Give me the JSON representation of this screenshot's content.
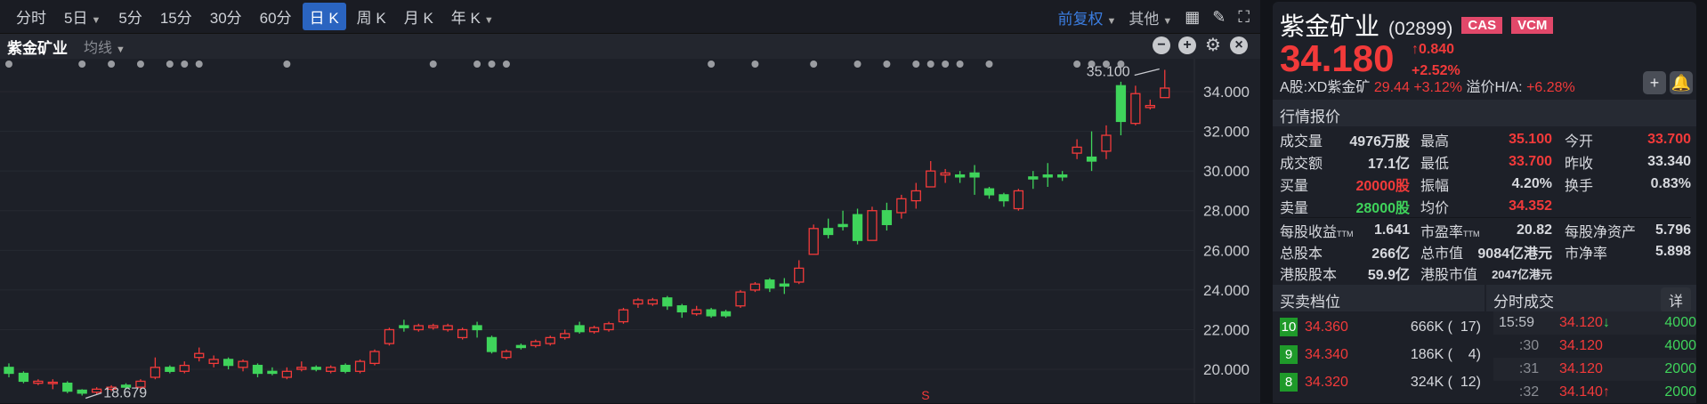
{
  "toolbar": {
    "periods": [
      {
        "label": "分时"
      },
      {
        "label": "5日",
        "chevron": true
      },
      {
        "label": "5分"
      },
      {
        "label": "15分"
      },
      {
        "label": "30分"
      },
      {
        "label": "60分"
      },
      {
        "label": "日 K",
        "active": true
      },
      {
        "label": "周 K"
      },
      {
        "label": "月 K"
      },
      {
        "label": "年 K",
        "chevron": true
      }
    ],
    "adjust": "前复权",
    "other": "其他",
    "icons": [
      "layout-grid-icon",
      "brush-icon",
      "fullscreen-icon"
    ]
  },
  "subbar": {
    "stock_name": "紫金矿业",
    "ma_label": "均线",
    "icons": [
      "zoom-out-icon",
      "zoom-in-icon",
      "gear-icon",
      "close-icon"
    ]
  },
  "chart_data": {
    "type": "candlestick",
    "y_ticks": [
      "34.000",
      "32.000",
      "30.000",
      "28.000",
      "26.000",
      "24.000",
      "22.000",
      "20.000"
    ],
    "ylim": [
      18.1,
      35.7
    ],
    "grid": true,
    "colors": {
      "up": "#f23a3a",
      "down": "#3fd45b",
      "event_dot": "#9a9ca1"
    },
    "high_label": "35.100",
    "low_label": "18.679",
    "marker_label": "S",
    "marker_index": 62,
    "event_dot_indices": [
      0,
      5,
      7,
      9,
      11,
      12,
      13,
      19,
      29,
      32,
      33,
      34,
      48,
      51,
      55,
      58,
      60,
      62,
      63,
      64,
      65,
      67,
      73,
      74,
      75,
      76
    ],
    "ohlc": [
      [
        20.1,
        20.3,
        19.6,
        19.8
      ],
      [
        19.8,
        19.9,
        19.3,
        19.4
      ],
      [
        19.3,
        19.5,
        19.2,
        19.4
      ],
      [
        19.3,
        19.5,
        19.0,
        19.35
      ],
      [
        19.3,
        19.4,
        18.8,
        18.9
      ],
      [
        18.95,
        19.0,
        18.679,
        18.8
      ],
      [
        18.85,
        19.1,
        18.75,
        19.0
      ],
      [
        19.0,
        19.2,
        18.9,
        19.1
      ],
      [
        19.2,
        19.3,
        19.0,
        19.1
      ],
      [
        19.1,
        19.5,
        19.0,
        19.4
      ],
      [
        19.6,
        20.6,
        19.5,
        20.1
      ],
      [
        20.1,
        20.2,
        19.8,
        19.9
      ],
      [
        19.9,
        20.4,
        19.8,
        20.2
      ],
      [
        20.6,
        21.1,
        20.4,
        20.8
      ],
      [
        20.3,
        20.7,
        20.1,
        20.5
      ],
      [
        20.5,
        20.6,
        20.0,
        20.2
      ],
      [
        20.1,
        20.5,
        19.9,
        20.4
      ],
      [
        20.2,
        20.3,
        19.6,
        19.8
      ],
      [
        19.9,
        20.1,
        19.7,
        19.8
      ],
      [
        19.6,
        20.1,
        19.5,
        19.9
      ],
      [
        20.0,
        20.4,
        19.9,
        20.1
      ],
      [
        20.1,
        20.2,
        19.9,
        20.0
      ],
      [
        19.9,
        20.2,
        19.8,
        20.1
      ],
      [
        20.2,
        20.3,
        19.8,
        19.9
      ],
      [
        19.9,
        20.5,
        19.8,
        20.4
      ],
      [
        20.3,
        21.0,
        20.2,
        20.9
      ],
      [
        21.3,
        22.1,
        21.2,
        22.0
      ],
      [
        22.2,
        22.5,
        21.9,
        22.1
      ],
      [
        22.0,
        22.3,
        21.9,
        22.2
      ],
      [
        22.1,
        22.3,
        22.0,
        22.2
      ],
      [
        22.0,
        22.3,
        21.9,
        22.2
      ],
      [
        21.6,
        22.1,
        21.5,
        22.0
      ],
      [
        22.2,
        22.4,
        21.6,
        22.0
      ],
      [
        21.6,
        21.7,
        20.8,
        20.9
      ],
      [
        20.6,
        21.0,
        20.5,
        20.9
      ],
      [
        21.2,
        21.3,
        21.0,
        21.1
      ],
      [
        21.2,
        21.5,
        21.1,
        21.4
      ],
      [
        21.3,
        21.7,
        21.2,
        21.6
      ],
      [
        21.6,
        22.0,
        21.5,
        21.8
      ],
      [
        22.2,
        22.4,
        21.8,
        21.9
      ],
      [
        21.9,
        22.2,
        21.8,
        22.1
      ],
      [
        22.0,
        22.4,
        21.9,
        22.3
      ],
      [
        22.4,
        23.1,
        22.3,
        23.0
      ],
      [
        23.3,
        23.6,
        23.1,
        23.5
      ],
      [
        23.3,
        23.6,
        23.2,
        23.5
      ],
      [
        23.6,
        23.7,
        23.0,
        23.2
      ],
      [
        23.2,
        23.3,
        22.6,
        22.9
      ],
      [
        22.8,
        23.2,
        22.7,
        23.0
      ],
      [
        23.0,
        23.1,
        22.6,
        22.7
      ],
      [
        22.9,
        23.0,
        22.6,
        22.7
      ],
      [
        23.2,
        24.0,
        23.1,
        23.9
      ],
      [
        24.0,
        24.4,
        23.9,
        24.3
      ],
      [
        24.5,
        24.6,
        23.9,
        24.1
      ],
      [
        24.3,
        24.6,
        23.8,
        24.2
      ],
      [
        24.4,
        25.5,
        24.3,
        25.1
      ],
      [
        25.8,
        27.3,
        25.8,
        27.1
      ],
      [
        27.1,
        27.6,
        26.6,
        26.8
      ],
      [
        27.3,
        28.0,
        27.0,
        27.2
      ],
      [
        27.8,
        28.1,
        26.3,
        26.5
      ],
      [
        26.5,
        28.2,
        26.5,
        28.0
      ],
      [
        28.0,
        28.4,
        27.0,
        27.3
      ],
      [
        27.9,
        28.8,
        27.6,
        28.6
      ],
      [
        28.5,
        29.4,
        28.1,
        29.0
      ],
      [
        29.2,
        30.5,
        29.2,
        30.0
      ],
      [
        29.8,
        30.1,
        29.4,
        29.9
      ],
      [
        29.8,
        30.0,
        29.4,
        29.7
      ],
      [
        29.9,
        30.3,
        28.8,
        29.7
      ],
      [
        29.1,
        29.2,
        28.6,
        28.8
      ],
      [
        28.8,
        28.9,
        28.2,
        28.5
      ],
      [
        28.1,
        29.1,
        28.0,
        29.0
      ],
      [
        29.7,
        30.0,
        29.1,
        29.6
      ],
      [
        29.8,
        30.4,
        29.2,
        29.7
      ],
      [
        29.8,
        30.0,
        29.5,
        29.7
      ],
      [
        30.9,
        31.6,
        30.6,
        31.2
      ],
      [
        30.7,
        32.0,
        30.0,
        30.5
      ],
      [
        31.0,
        32.3,
        30.6,
        31.8
      ],
      [
        34.3,
        34.5,
        31.8,
        32.5
      ],
      [
        32.4,
        34.3,
        32.3,
        33.9
      ],
      [
        33.2,
        33.6,
        33.1,
        33.3
      ],
      [
        33.7,
        35.1,
        33.7,
        34.18
      ]
    ]
  },
  "quote": {
    "name": "紫金矿业",
    "code": "(02899)",
    "badges": [
      "CAS",
      "VCM"
    ],
    "price": "34.180",
    "change": "0.840",
    "change_pct": "+2.52%",
    "a_share_label": "A股:XD紫金矿",
    "a_share_price": "29.44",
    "a_share_pct": "+3.12%",
    "premium_label": "溢价H/A:",
    "premium": "+6.28%",
    "section_title": "行情报价",
    "rows": [
      [
        {
          "l": "成交量",
          "v": "4976万股"
        },
        {
          "l": "最高",
          "v": "35.100",
          "c": "red"
        },
        {
          "l": "今开",
          "v": "33.700",
          "c": "red"
        }
      ],
      [
        {
          "l": "成交额",
          "v": "17.1亿"
        },
        {
          "l": "最低",
          "v": "33.700",
          "c": "red"
        },
        {
          "l": "昨收",
          "v": "33.340"
        }
      ],
      [
        {
          "l": "买量",
          "v": "20000股",
          "c": "red"
        },
        {
          "l": "振幅",
          "v": "4.20%"
        },
        {
          "l": "换手",
          "v": "0.83%"
        }
      ],
      [
        {
          "l": "卖量",
          "v": "28000股",
          "c": "green"
        },
        {
          "l": "均价",
          "v": "34.352",
          "c": "red"
        },
        {
          "l": "",
          "v": ""
        }
      ]
    ],
    "rows2": [
      [
        {
          "l": "每股收益",
          "ttm": "TTM",
          "v": "1.641"
        },
        {
          "l": "市盈率",
          "ttm": "TTM",
          "v": "20.82"
        },
        {
          "l": "每股净资产",
          "v": "5.796"
        }
      ],
      [
        {
          "l": "总股本",
          "v": "266亿"
        },
        {
          "l": "总市值",
          "v": "9084亿港元"
        },
        {
          "l": "市净率",
          "v": "5.898"
        }
      ],
      [
        {
          "l": "港股股本",
          "v": "59.9亿"
        },
        {
          "l": "港股市值",
          "v": "2047亿港元"
        },
        {
          "l": "",
          "v": ""
        }
      ]
    ]
  },
  "book": {
    "title": "买卖档位",
    "rows": [
      {
        "level": "10",
        "price": "34.360",
        "qty": "666K (  17)"
      },
      {
        "level": "9",
        "price": "34.340",
        "qty": "186K (    4)"
      },
      {
        "level": "8",
        "price": "34.320",
        "qty": "324K (  12)"
      }
    ]
  },
  "ticks": {
    "title": "分时成交",
    "detail": "详",
    "rows": [
      {
        "time": "15:59",
        "price": "34.120",
        "dir": "↓",
        "qty": "4000"
      },
      {
        "time": ":30",
        "price": "34.120",
        "dir": "",
        "qty": "4000"
      },
      {
        "time": ":31",
        "price": "34.120",
        "dir": "",
        "qty": "2000"
      },
      {
        "time": ":32",
        "price": "34.140",
        "dir": "↑",
        "qty": "2000"
      }
    ]
  }
}
